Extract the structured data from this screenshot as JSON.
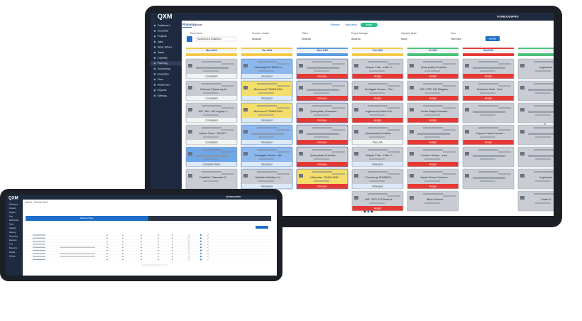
{
  "brand": {
    "logo": "QXM",
    "product": "SCHEDULEPRO"
  },
  "sidebar": [
    "Dashboard",
    "Accounts",
    "Projects",
    "Jobs",
    "Work Orders",
    "Tasks",
    "Capacity",
    "Planning",
    "Scheduling",
    "Execution",
    "Time",
    "Resources",
    "Reports",
    "Settings"
  ],
  "header": {
    "title": "Planning",
    "tab": "Install",
    "links": [
      "Release",
      "Fabrication"
    ],
    "active": "Install"
  },
  "filters": [
    {
      "label": "Plan Period",
      "value": "9/24/2024 to 9/28/2024"
    },
    {
      "label": "Service Location",
      "value": "Show All"
    },
    {
      "label": "Filters",
      "value": "Show All"
    },
    {
      "label": "Project Manager",
      "value": "Show All"
    },
    {
      "label": "Capacity Mode",
      "value": "Hours"
    },
    {
      "label": "View",
      "value": "Plan View"
    }
  ],
  "update_button": "Update",
  "columns": [
    {
      "day": "Mon 9/23",
      "color": "#f2c94c",
      "border": "#9aa3ad",
      "cards": [
        {
          "status": "Completed",
          "bg": "#c9cdd3",
          "status_bg": "#f2f3f5",
          "status_fg": "#333"
        },
        {
          "title": "Kilmore| Splash repair",
          "status": "Completed",
          "bg": "#c9cdd3",
          "status_bg": "#f2f3f5",
          "status_fg": "#333"
        },
        {
          "title": "WS / SKL 440 Legacy s...",
          "status": "Completed",
          "bg": "#c9cdd3",
          "status_bg": "#f2f3f5",
          "status_fg": "#333"
        },
        {
          "title": "Harbor Point - SKONT...",
          "status": "Completed",
          "bg": "#c9cdd3",
          "status_bg": "#f2f3f5",
          "status_fg": "#333"
        },
        {
          "status": "Complete Work",
          "bg": "#6fa8e8",
          "status_bg": "#dbe9f8",
          "status_fg": "#333"
        },
        {
          "title": "Castfield, Tidewater R...",
          "bg": "#c9cdd3"
        }
      ]
    },
    {
      "day": "Tue 9/24",
      "color": "#f2c94c",
      "border": "#3b6fc4",
      "cards": [
        {
          "title": "Carhwright Of 5000 La...",
          "status": "Released",
          "bg": "#8db8ec",
          "status_bg": "#dbe9f8",
          "status_fg": "#333"
        },
        {
          "title": "Birchwood TOWNHOM...",
          "status": "Released",
          "bg": "#f3dd6b",
          "status_bg": "#dbe9f8",
          "status_fg": "#333"
        },
        {
          "title": "Birchwood TOWNHOM...",
          "status": "Released",
          "bg": "#f3dd6b",
          "status_bg": "#dbe9f8",
          "status_fg": "#333"
        },
        {
          "status": "Released",
          "bg": "#8db8ec",
          "status_bg": "#dbe9f8",
          "status_fg": "#333"
        },
        {
          "title": "Northgate Homes - Alt...",
          "status": "Released",
          "bg": "#8db8ec",
          "status_bg": "#dbe9f8",
          "status_fg": "#333"
        },
        {
          "title": "Meridian Builders Co...",
          "status": "Released",
          "bg": "#c9cdd3",
          "status_bg": "#dbe9f8",
          "status_fg": "#333"
        }
      ]
    },
    {
      "day": "Wed 9/25",
      "color": "#5b9be0",
      "border": "#1f3f8a",
      "cards": [
        {
          "status": "Release",
          "bg": "#c9cdd3",
          "status_bg": "#e53935",
          "status_fg": "#fff"
        },
        {
          "status": "Release",
          "bg": "#c9cdd3",
          "status_bg": "#e53935",
          "status_fg": "#fff"
        },
        {
          "title": "Quarrydale| Jessamin...",
          "status": "Release",
          "bg": "#c9cdd3",
          "status_bg": "#e53935",
          "status_fg": "#fff"
        },
        {
          "status": "Release",
          "bg": "#c9cdd3",
          "status_bg": "#e53935",
          "status_fg": "#fff"
        },
        {
          "title": "Quarrydale| Crestline ...",
          "status": "Release",
          "bg": "#c9cdd3",
          "status_bg": "#e53935",
          "status_fg": "#fff"
        },
        {
          "title": "Ullweeder, CRAIG AND",
          "status": "Release",
          "bg": "#f3dd6b",
          "status_bg": "#e53935",
          "status_fg": "#fff"
        }
      ]
    },
    {
      "day": "Thu 9/26",
      "color": "#f2c94c",
      "border": "#9aa3ad",
      "cards": [
        {
          "title": "Juniper Flats - Little C...",
          "status": "Assign",
          "bg": "#c9cdd3",
          "status_bg": "#e53935",
          "status_fg": "#fff"
        },
        {
          "title": "Northgate Homes - Gre...",
          "status": "Assign",
          "bg": "#c9cdd3",
          "status_bg": "#e53935",
          "status_fg": "#fff"
        },
        {
          "title": "Inglewood| Umber Hil...",
          "status": "Assign",
          "bg": "#c9cdd3",
          "status_bg": "#e53935",
          "status_fg": "#fff"
        },
        {
          "title": "Quarrydale| Crestline ...",
          "status": "Plan Job",
          "bg": "#c9cdd3",
          "status_bg": "#f2f3f5",
          "status_fg": "#333"
        },
        {
          "title": "Juniper Flats - Little C...",
          "status": "Released",
          "bg": "#c9cdd3",
          "status_bg": "#dbe9f8",
          "status_fg": "#333"
        },
        {
          "title": "Thornbury| DISANIO L...",
          "status": "Released",
          "bg": "#c9cdd3",
          "status_bg": "#dbe9f8",
          "status_fg": "#333"
        },
        {
          "title": "WS / HPV 120 Vista at...",
          "status": "Assign",
          "bg": "#c9cdd3",
          "status_bg": "#e53935",
          "status_fg": "#fff"
        }
      ]
    },
    {
      "day": "Fri 9/27",
      "color": "#4cc07a",
      "border": "#9aa3ad",
      "cards": [
        {
          "title": "Quarrydale| Crestline ...",
          "status": "Assign",
          "bg": "#c9cdd3",
          "status_bg": "#e53935",
          "status_fg": "#fff"
        },
        {
          "title": "WS / PRV 614 Ridgelin...",
          "status": "Assign",
          "bg": "#c9cdd3",
          "status_bg": "#e53935",
          "status_fg": "#fff"
        },
        {
          "title": "Cedar Ridge Remodel...",
          "status": "Assign",
          "bg": "#c9cdd3",
          "status_bg": "#e53935",
          "status_fg": "#fff"
        },
        {
          "status": "Assign",
          "bg": "#c9cdd3",
          "status_bg": "#e53935",
          "status_fg": "#fff"
        },
        {
          "title": "Lantern Homes - Law...",
          "status": "Assign",
          "bg": "#c9cdd3",
          "status_bg": "#e53935",
          "status_fg": "#fff"
        },
        {
          "title": "Aspen Grove Construc...",
          "status": "Assign",
          "bg": "#c9cdd3",
          "status_bg": "#e53935",
          "status_fg": "#fff"
        },
        {
          "title": "Brick Tollover",
          "bg": "#c9cdd3"
        }
      ]
    },
    {
      "day": "Sat 9/28",
      "color": "#e53935",
      "border": "#9aa3ad",
      "cards": [
        {
          "status": "Assign",
          "bg": "#c9cdd3",
          "status_bg": "#e53935",
          "status_fg": "#fff"
        },
        {
          "title": "Fostenius Built - Hori...",
          "status": "Assign",
          "bg": "#c9cdd3",
          "status_bg": "#e53935",
          "status_fg": "#fff"
        },
        {
          "bg": "#c9cdd3"
        },
        {
          "title": "Copper Creek Homest...",
          "status": "Assign",
          "bg": "#c9cdd3",
          "status_bg": "#e53935",
          "status_fg": "#fff"
        },
        {
          "bg": "#c9cdd3"
        },
        {
          "bg": "#c9cdd3"
        }
      ]
    },
    {
      "color": "#4cc07a",
      "border": "#9aa3ad",
      "cards": [
        {
          "title": "Inglewood",
          "bg": "#c9cdd3"
        },
        {
          "bg": "#c9cdd3"
        },
        {
          "bg": "#c9cdd3"
        },
        {
          "bg": "#c9cdd3"
        },
        {
          "bg": "#c9cdd3"
        },
        {
          "title": "Inglewood",
          "bg": "#c9cdd3"
        },
        {
          "title": "Cedar R",
          "bg": "#c9cdd3"
        }
      ]
    }
  ],
  "laptop": {
    "breadcrumb": "Settings",
    "page": "Schedule Types"
  }
}
